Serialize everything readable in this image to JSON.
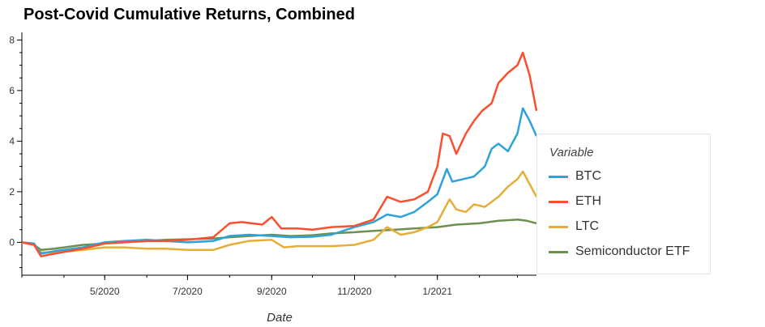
{
  "chart_data": {
    "type": "line",
    "title": "Post-Covid Cumulative Returns, Combined",
    "xlabel": "Date",
    "ylabel": "",
    "x_ticks": [
      "5/2020",
      "7/2020",
      "9/2020",
      "11/2020",
      "1/2021"
    ],
    "x_tick_dates": [
      "2020-05-01",
      "2020-07-01",
      "2020-09-01",
      "2020-11-01",
      "2021-01-01"
    ],
    "x_range": [
      "2020-03-01",
      "2021-03-15"
    ],
    "y_ticks": [
      0,
      2,
      4,
      6,
      8
    ],
    "ylim": [
      -1.3,
      8.3
    ],
    "grid": false,
    "legend": {
      "title": "Variable",
      "placement": "right"
    },
    "series": [
      {
        "name": "BTC",
        "color": "#30a2da",
        "points": [
          [
            "2020-03-01",
            0
          ],
          [
            "2020-03-10",
            -0.05
          ],
          [
            "2020-03-15",
            -0.45
          ],
          [
            "2020-03-25",
            -0.35
          ],
          [
            "2020-04-15",
            -0.2
          ],
          [
            "2020-05-01",
            0.0
          ],
          [
            "2020-05-15",
            0.05
          ],
          [
            "2020-06-01",
            0.1
          ],
          [
            "2020-06-15",
            0.05
          ],
          [
            "2020-07-01",
            0.0
          ],
          [
            "2020-07-20",
            0.05
          ],
          [
            "2020-08-01",
            0.25
          ],
          [
            "2020-08-15",
            0.3
          ],
          [
            "2020-09-01",
            0.25
          ],
          [
            "2020-09-15",
            0.2
          ],
          [
            "2020-10-01",
            0.22
          ],
          [
            "2020-10-15",
            0.3
          ],
          [
            "2020-11-01",
            0.6
          ],
          [
            "2020-11-15",
            0.8
          ],
          [
            "2020-11-25",
            1.1
          ],
          [
            "2020-12-05",
            1.0
          ],
          [
            "2020-12-15",
            1.2
          ],
          [
            "2020-12-25",
            1.6
          ],
          [
            "2021-01-01",
            1.9
          ],
          [
            "2021-01-08",
            2.9
          ],
          [
            "2021-01-12",
            2.4
          ],
          [
            "2021-01-20",
            2.5
          ],
          [
            "2021-01-28",
            2.6
          ],
          [
            "2021-02-05",
            3.0
          ],
          [
            "2021-02-10",
            3.7
          ],
          [
            "2021-02-15",
            3.9
          ],
          [
            "2021-02-22",
            3.6
          ],
          [
            "2021-03-01",
            4.3
          ],
          [
            "2021-03-05",
            5.3
          ],
          [
            "2021-03-10",
            4.8
          ],
          [
            "2021-03-15",
            4.2
          ]
        ]
      },
      {
        "name": "ETH",
        "color": "#fc4f30",
        "points": [
          [
            "2020-03-01",
            0
          ],
          [
            "2020-03-10",
            -0.1
          ],
          [
            "2020-03-15",
            -0.55
          ],
          [
            "2020-03-25",
            -0.45
          ],
          [
            "2020-04-15",
            -0.25
          ],
          [
            "2020-05-01",
            -0.05
          ],
          [
            "2020-05-15",
            0.0
          ],
          [
            "2020-06-01",
            0.05
          ],
          [
            "2020-06-15",
            0.05
          ],
          [
            "2020-07-01",
            0.1
          ],
          [
            "2020-07-20",
            0.2
          ],
          [
            "2020-08-01",
            0.75
          ],
          [
            "2020-08-10",
            0.8
          ],
          [
            "2020-08-25",
            0.7
          ],
          [
            "2020-09-01",
            1.0
          ],
          [
            "2020-09-08",
            0.55
          ],
          [
            "2020-09-20",
            0.55
          ],
          [
            "2020-10-01",
            0.5
          ],
          [
            "2020-10-15",
            0.6
          ],
          [
            "2020-11-01",
            0.65
          ],
          [
            "2020-11-15",
            0.9
          ],
          [
            "2020-11-25",
            1.8
          ],
          [
            "2020-12-05",
            1.6
          ],
          [
            "2020-12-15",
            1.7
          ],
          [
            "2020-12-25",
            2.0
          ],
          [
            "2021-01-01",
            3.0
          ],
          [
            "2021-01-05",
            4.3
          ],
          [
            "2021-01-10",
            4.2
          ],
          [
            "2021-01-15",
            3.5
          ],
          [
            "2021-01-22",
            4.3
          ],
          [
            "2021-01-28",
            4.8
          ],
          [
            "2021-02-03",
            5.2
          ],
          [
            "2021-02-10",
            5.5
          ],
          [
            "2021-02-15",
            6.3
          ],
          [
            "2021-02-22",
            6.7
          ],
          [
            "2021-03-01",
            7.0
          ],
          [
            "2021-03-05",
            7.5
          ],
          [
            "2021-03-10",
            6.6
          ],
          [
            "2021-03-15",
            5.2
          ]
        ]
      },
      {
        "name": "LTC",
        "color": "#e5ae38",
        "points": [
          [
            "2020-03-01",
            0
          ],
          [
            "2020-03-10",
            -0.1
          ],
          [
            "2020-03-15",
            -0.4
          ],
          [
            "2020-03-25",
            -0.4
          ],
          [
            "2020-04-15",
            -0.3
          ],
          [
            "2020-05-01",
            -0.2
          ],
          [
            "2020-05-15",
            -0.2
          ],
          [
            "2020-06-01",
            -0.25
          ],
          [
            "2020-06-15",
            -0.25
          ],
          [
            "2020-07-01",
            -0.3
          ],
          [
            "2020-07-20",
            -0.3
          ],
          [
            "2020-08-01",
            -0.1
          ],
          [
            "2020-08-15",
            0.05
          ],
          [
            "2020-09-01",
            0.1
          ],
          [
            "2020-09-10",
            -0.2
          ],
          [
            "2020-09-20",
            -0.15
          ],
          [
            "2020-10-01",
            -0.15
          ],
          [
            "2020-10-15",
            -0.15
          ],
          [
            "2020-11-01",
            -0.1
          ],
          [
            "2020-11-15",
            0.1
          ],
          [
            "2020-11-25",
            0.6
          ],
          [
            "2020-12-05",
            0.3
          ],
          [
            "2020-12-15",
            0.4
          ],
          [
            "2020-12-25",
            0.6
          ],
          [
            "2021-01-01",
            0.8
          ],
          [
            "2021-01-10",
            1.7
          ],
          [
            "2021-01-15",
            1.3
          ],
          [
            "2021-01-22",
            1.2
          ],
          [
            "2021-01-28",
            1.5
          ],
          [
            "2021-02-05",
            1.4
          ],
          [
            "2021-02-10",
            1.6
          ],
          [
            "2021-02-15",
            1.8
          ],
          [
            "2021-02-22",
            2.2
          ],
          [
            "2021-03-01",
            2.5
          ],
          [
            "2021-03-05",
            2.8
          ],
          [
            "2021-03-10",
            2.3
          ],
          [
            "2021-03-15",
            1.8
          ]
        ]
      },
      {
        "name": "Semiconductor ETF",
        "color": "#6d904f",
        "points": [
          [
            "2020-03-01",
            0
          ],
          [
            "2020-03-10",
            -0.1
          ],
          [
            "2020-03-15",
            -0.3
          ],
          [
            "2020-03-25",
            -0.25
          ],
          [
            "2020-04-15",
            -0.1
          ],
          [
            "2020-05-01",
            -0.05
          ],
          [
            "2020-05-15",
            0.0
          ],
          [
            "2020-06-01",
            0.05
          ],
          [
            "2020-06-15",
            0.1
          ],
          [
            "2020-07-01",
            0.12
          ],
          [
            "2020-07-20",
            0.15
          ],
          [
            "2020-08-01",
            0.2
          ],
          [
            "2020-08-15",
            0.25
          ],
          [
            "2020-09-01",
            0.3
          ],
          [
            "2020-09-15",
            0.25
          ],
          [
            "2020-10-01",
            0.28
          ],
          [
            "2020-10-15",
            0.35
          ],
          [
            "2020-11-01",
            0.4
          ],
          [
            "2020-11-15",
            0.45
          ],
          [
            "2020-12-01",
            0.5
          ],
          [
            "2020-12-15",
            0.55
          ],
          [
            "2021-01-01",
            0.6
          ],
          [
            "2021-01-15",
            0.7
          ],
          [
            "2021-02-01",
            0.75
          ],
          [
            "2021-02-15",
            0.85
          ],
          [
            "2021-03-01",
            0.9
          ],
          [
            "2021-03-08",
            0.85
          ],
          [
            "2021-03-15",
            0.75
          ]
        ]
      }
    ]
  }
}
